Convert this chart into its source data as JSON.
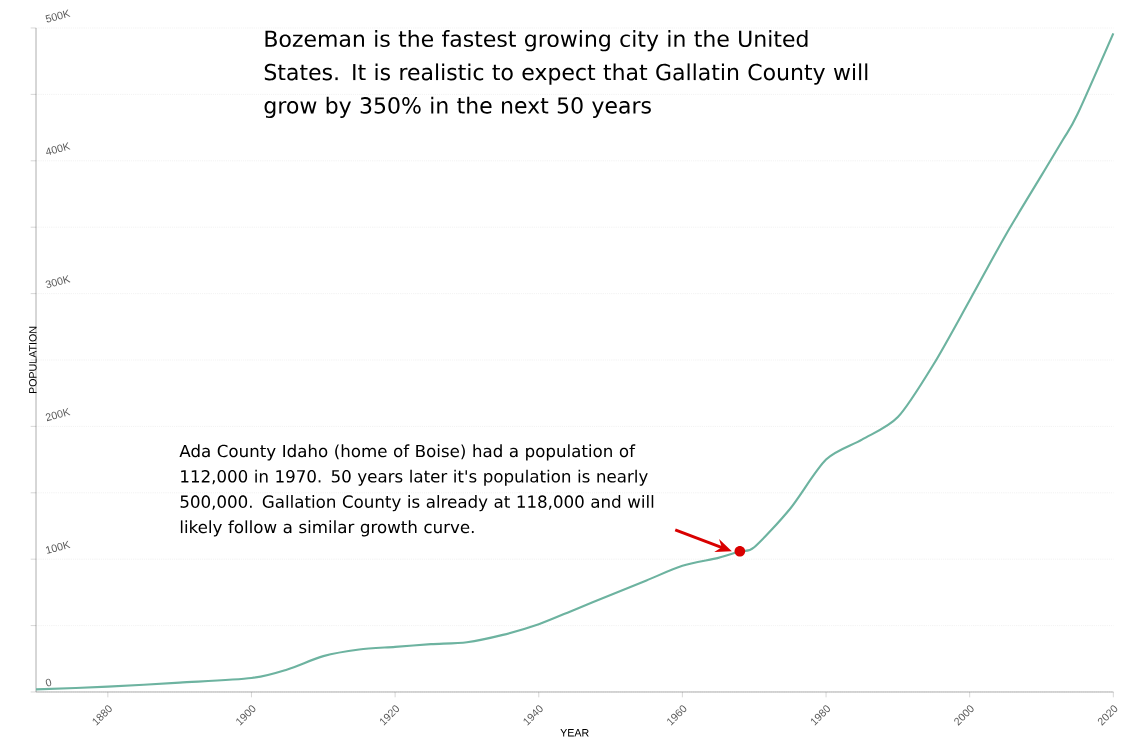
{
  "chart_data": {
    "type": "line",
    "xlabel": "YEAR",
    "ylabel": "POPULATION",
    "color": "#6db3a0",
    "x": [
      1870,
      1880,
      1890,
      1900,
      1905,
      1910,
      1915,
      1920,
      1925,
      1930,
      1935,
      1940,
      1945,
      1950,
      1955,
      1960,
      1965,
      1968,
      1970,
      1975,
      1980,
      1985,
      1990,
      1995,
      2000,
      2005,
      2010,
      2013,
      2015,
      2020
    ],
    "values": [
      2000,
      4000,
      7000,
      10500,
      17000,
      27000,
      32000,
      34000,
      36000,
      37500,
      43000,
      51000,
      62000,
      73000,
      84000,
      95000,
      101000,
      106000,
      109000,
      138000,
      175000,
      190000,
      207000,
      247000,
      295000,
      344000,
      389000,
      416000,
      435000,
      496000
    ],
    "xlim": [
      1870,
      2020
    ],
    "ylim": [
      0,
      500000
    ],
    "xticks": [
      1880,
      1900,
      1920,
      1940,
      1960,
      1980,
      2000,
      2020
    ],
    "yticks": [
      0,
      {
        "value": 50000,
        "label": null
      },
      {
        "value": 100000,
        "label": "100K"
      },
      {
        "value": 150000,
        "label": null
      },
      {
        "value": 200000,
        "label": "200K"
      },
      {
        "value": 250000,
        "label": null
      },
      {
        "value": 300000,
        "label": "300K"
      },
      {
        "value": 350000,
        "label": null
      },
      {
        "value": 400000,
        "label": "400K"
      },
      {
        "value": 450000,
        "label": null
      },
      {
        "value": 500000,
        "label": "500K"
      }
    ],
    "grid": "y",
    "annotations": [
      "Bozeman is the fastest growing city in the United States. It is realistic to expect that Gallatin County will grow by 350% in the next 50 years",
      "Ada County Idaho (home of Boise) had a population of 112,000 in 1970. 50 years later it's population is nearly 500,000. Gallation County is already at 118,000 and will likely follow a similar growth curve."
    ]
  }
}
